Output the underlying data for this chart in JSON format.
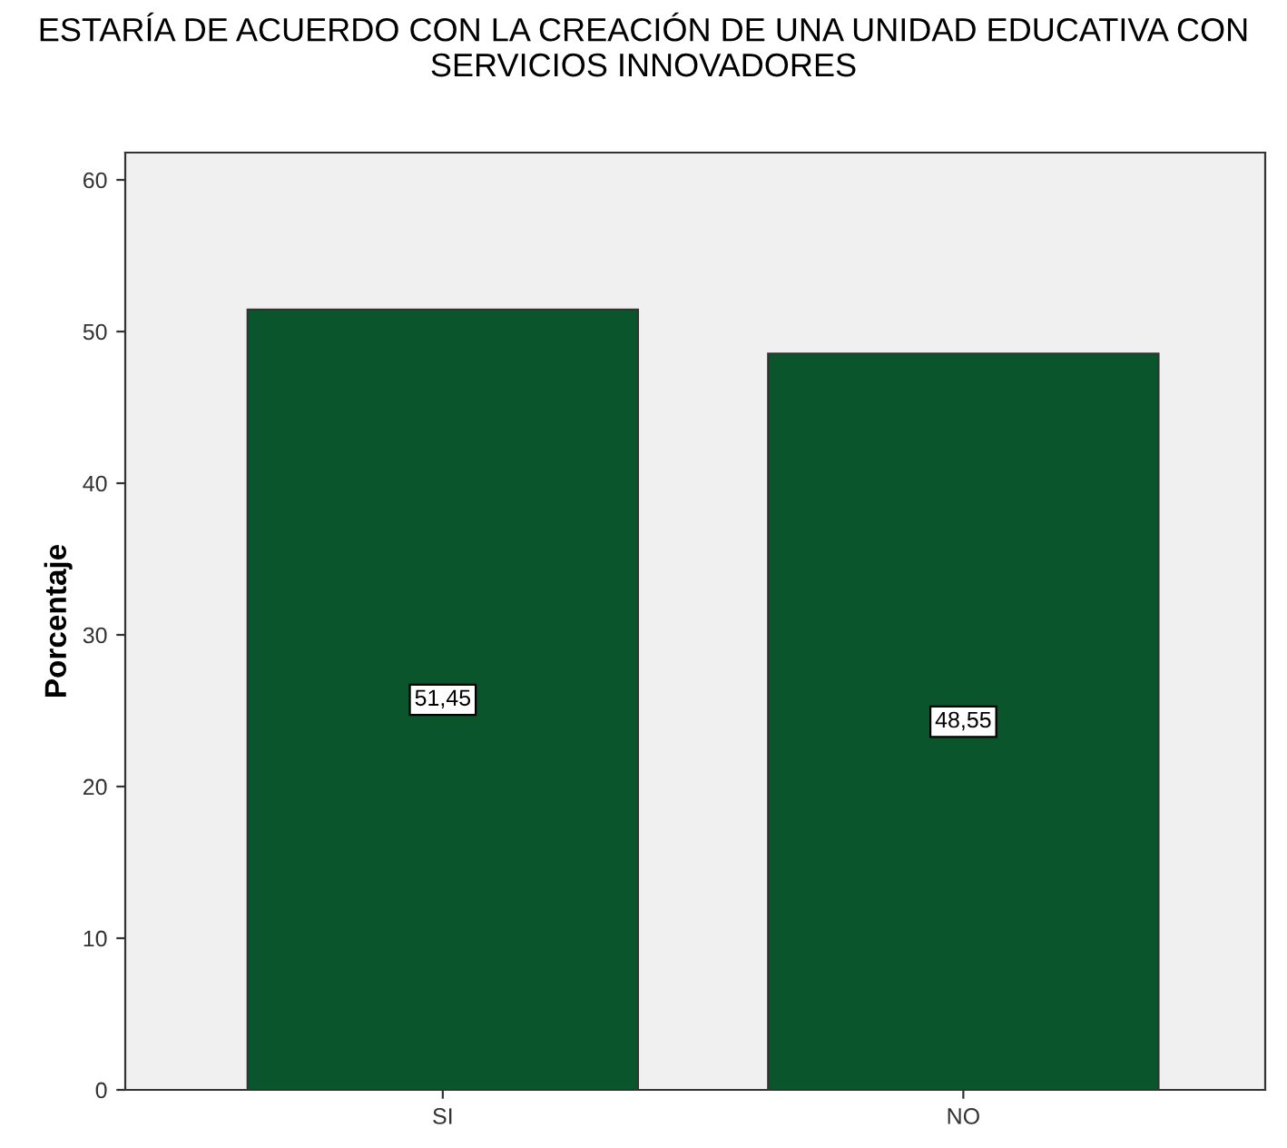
{
  "chart_data": {
    "type": "bar",
    "title": "ESTARÍA DE ACUERDO CON LA CREACIÓN DE UNA UNIDAD EDUCATIVA CON SERVICIOS INNOVADORES",
    "ylabel": "Porcentaje",
    "categories": [
      "SI",
      "NO"
    ],
    "values": [
      51.45,
      48.55
    ],
    "value_labels": [
      "51,45",
      "48,55"
    ],
    "color": "#0a552c",
    "ylim": [
      0,
      61.8
    ],
    "yticks": [
      0,
      10,
      20,
      30,
      40,
      50,
      60
    ],
    "grid": false,
    "legend": false
  }
}
